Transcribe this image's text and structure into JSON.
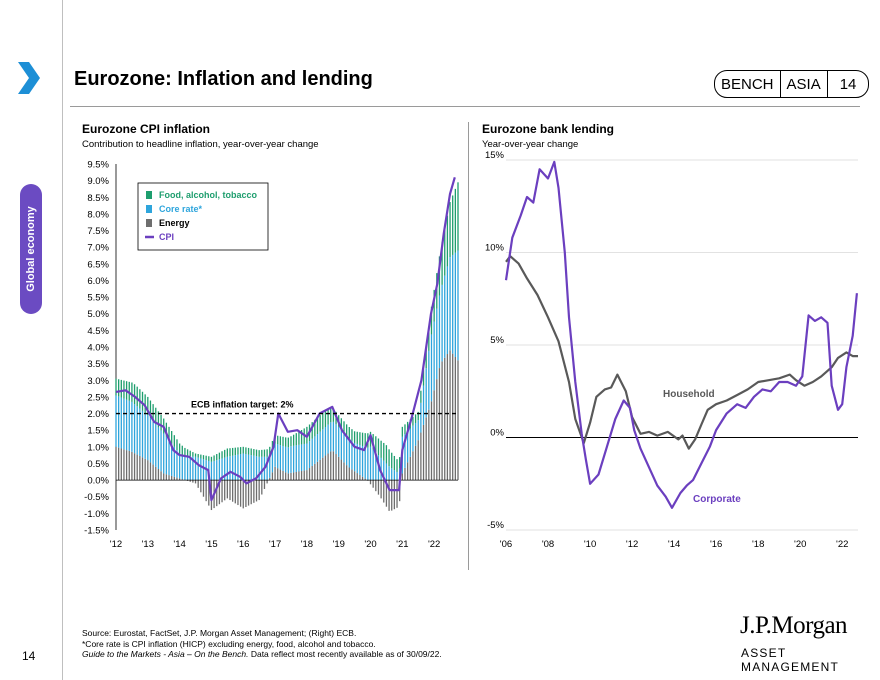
{
  "header": {
    "title": "Eurozone: Inflation and lending",
    "badge_left": "BENCH",
    "badge_mid": "ASIA",
    "badge_num": "14"
  },
  "sidebar": {
    "label": "Global economy"
  },
  "left_chart": {
    "title": "Eurozone CPI inflation",
    "subtitle": "Contribution to headline inflation, year-over-year change"
  },
  "right_chart": {
    "title": "Eurozone bank lending",
    "subtitle": "Year-over-year change"
  },
  "footer": {
    "line1": "Source: Eurostat, FactSet, J.P. Morgan Asset Management; (Right) ECB.",
    "line2": "*Core rate is CPI inflation (HICP) excluding energy, food, alcohol and tobacco.",
    "line3_italic": "Guide to the Markets - Asia – On the Bench.",
    "line3_rest": " Data reflect most recently available as of 30/09/22."
  },
  "page_number": "14",
  "logo": {
    "line1": "J.P.Morgan",
    "line2": "ASSET MANAGEMENT"
  },
  "colors": {
    "food": "#1e9e6e",
    "core": "#2ea5dc",
    "energy": "#6e6e6e",
    "cpi": "#6b3fbf",
    "household": "#595959",
    "corporate": "#6b3fbf",
    "accent": "#1d8fd6",
    "sidebar": "#6b4bc2"
  },
  "chart_data": [
    {
      "type": "bar",
      "stacked": true,
      "title": "Eurozone CPI inflation",
      "subtitle": "Contribution to headline inflation, year-over-year change",
      "x_ticks": [
        "'12",
        "'13",
        "'14",
        "'15",
        "'16",
        "'17",
        "'18",
        "'19",
        "'20",
        "'21",
        "'22"
      ],
      "x_tick_years": [
        2012,
        2013,
        2014,
        2015,
        2016,
        2017,
        2018,
        2019,
        2020,
        2021,
        2022
      ],
      "x_range": [
        2012.0,
        2022.75
      ],
      "ylim": [
        -1.5,
        9.5
      ],
      "y_ticks": [
        "-1.5%",
        "-1.0%",
        "-0.5%",
        "0.0%",
        "0.5%",
        "1.0%",
        "1.5%",
        "2.0%",
        "2.5%",
        "3.0%",
        "3.5%",
        "4.0%",
        "4.5%",
        "5.0%",
        "5.5%",
        "6.0%",
        "6.5%",
        "7.0%",
        "7.5%",
        "8.0%",
        "8.5%",
        "9.0%",
        "9.5%"
      ],
      "y_tick_values": [
        -1.5,
        -1.0,
        -0.5,
        0.0,
        0.5,
        1.0,
        1.5,
        2.0,
        2.5,
        3.0,
        3.5,
        4.0,
        4.5,
        5.0,
        5.5,
        6.0,
        6.5,
        7.0,
        7.5,
        8.0,
        8.5,
        9.0,
        9.5
      ],
      "legend": [
        "Food, alcohol, tobacco",
        "Core rate*",
        "Energy",
        "CPI"
      ],
      "legend_position": "top-left",
      "target_line": {
        "value": 2.0,
        "label": "ECB inflation target: 2%"
      },
      "energy_anchors": [
        [
          2012.0,
          1.0
        ],
        [
          2012.5,
          0.85
        ],
        [
          2013.0,
          0.6
        ],
        [
          2013.5,
          0.2
        ],
        [
          2014.0,
          0.05
        ],
        [
          2014.5,
          -0.1
        ],
        [
          2015.0,
          -0.9
        ],
        [
          2015.5,
          -0.55
        ],
        [
          2016.0,
          -0.85
        ],
        [
          2016.5,
          -0.6
        ],
        [
          2017.0,
          0.4
        ],
        [
          2017.4,
          0.2
        ],
        [
          2018.0,
          0.3
        ],
        [
          2018.8,
          0.9
        ],
        [
          2019.3,
          0.4
        ],
        [
          2019.9,
          0.0
        ],
        [
          2020.3,
          -0.5
        ],
        [
          2020.6,
          -0.95
        ],
        [
          2020.9,
          -0.8
        ],
        [
          2021.0,
          0.2
        ],
        [
          2021.5,
          1.2
        ],
        [
          2021.9,
          2.3
        ],
        [
          2022.2,
          3.5
        ],
        [
          2022.5,
          3.9
        ],
        [
          2022.75,
          3.6
        ]
      ],
      "food_anchors": [
        [
          2012.0,
          0.5
        ],
        [
          2012.6,
          0.6
        ],
        [
          2013.0,
          0.55
        ],
        [
          2013.5,
          0.45
        ],
        [
          2014.0,
          0.3
        ],
        [
          2014.5,
          0.1
        ],
        [
          2015.0,
          0.15
        ],
        [
          2015.5,
          0.25
        ],
        [
          2016.0,
          0.2
        ],
        [
          2016.5,
          0.2
        ],
        [
          2017.0,
          0.25
        ],
        [
          2017.5,
          0.3
        ],
        [
          2018.0,
          0.5
        ],
        [
          2018.5,
          0.5
        ],
        [
          2019.0,
          0.35
        ],
        [
          2019.5,
          0.35
        ],
        [
          2020.0,
          0.45
        ],
        [
          2020.5,
          0.55
        ],
        [
          2021.0,
          0.3
        ],
        [
          2021.5,
          0.25
        ],
        [
          2022.0,
          0.95
        ],
        [
          2022.4,
          1.5
        ],
        [
          2022.75,
          2.05
        ]
      ],
      "core_anchors": [
        [
          2012.0,
          1.55
        ],
        [
          2012.5,
          1.5
        ],
        [
          2013.0,
          1.35
        ],
        [
          2013.5,
          1.2
        ],
        [
          2014.0,
          0.75
        ],
        [
          2014.5,
          0.7
        ],
        [
          2015.0,
          0.55
        ],
        [
          2015.5,
          0.7
        ],
        [
          2016.0,
          0.8
        ],
        [
          2016.5,
          0.7
        ],
        [
          2017.0,
          0.7
        ],
        [
          2017.5,
          0.8
        ],
        [
          2018.0,
          0.8
        ],
        [
          2018.5,
          0.85
        ],
        [
          2019.0,
          0.9
        ],
        [
          2019.5,
          0.85
        ],
        [
          2020.0,
          1.0
        ],
        [
          2020.6,
          0.4
        ],
        [
          2020.9,
          0.2
        ],
        [
          2021.0,
          1.1
        ],
        [
          2021.5,
          0.6
        ],
        [
          2021.9,
          2.0
        ],
        [
          2022.2,
          2.2
        ],
        [
          2022.5,
          2.8
        ],
        [
          2022.75,
          3.3
        ]
      ],
      "cpi_anchors": [
        [
          2012.0,
          2.65
        ],
        [
          2012.3,
          2.7
        ],
        [
          2012.6,
          2.5
        ],
        [
          2012.9,
          2.25
        ],
        [
          2013.2,
          1.75
        ],
        [
          2013.5,
          1.6
        ],
        [
          2013.8,
          0.9
        ],
        [
          2014.0,
          0.75
        ],
        [
          2014.3,
          0.7
        ],
        [
          2014.6,
          0.45
        ],
        [
          2014.9,
          0.3
        ],
        [
          2015.0,
          -0.6
        ],
        [
          2015.3,
          0.05
        ],
        [
          2015.6,
          0.25
        ],
        [
          2015.9,
          0.1
        ],
        [
          2016.1,
          -0.1
        ],
        [
          2016.4,
          0.05
        ],
        [
          2016.7,
          0.4
        ],
        [
          2016.95,
          1.0
        ],
        [
          2017.1,
          2.0
        ],
        [
          2017.4,
          1.45
        ],
        [
          2017.7,
          1.5
        ],
        [
          2018.0,
          1.3
        ],
        [
          2018.4,
          2.0
        ],
        [
          2018.8,
          2.2
        ],
        [
          2019.1,
          1.5
        ],
        [
          2019.5,
          1.0
        ],
        [
          2019.8,
          0.9
        ],
        [
          2020.0,
          1.35
        ],
        [
          2020.3,
          0.3
        ],
        [
          2020.6,
          -0.3
        ],
        [
          2020.9,
          -0.3
        ],
        [
          2021.0,
          0.9
        ],
        [
          2021.3,
          1.9
        ],
        [
          2021.6,
          3.0
        ],
        [
          2021.9,
          5.0
        ],
        [
          2022.1,
          5.9
        ],
        [
          2022.3,
          7.4
        ],
        [
          2022.5,
          8.6
        ],
        [
          2022.65,
          9.1
        ]
      ]
    },
    {
      "type": "line",
      "title": "Eurozone bank lending",
      "subtitle": "Year-over-year change",
      "x_ticks": [
        "'06",
        "'08",
        "'10",
        "'12",
        "'14",
        "'16",
        "'18",
        "'20",
        "'22"
      ],
      "x_tick_years": [
        2006,
        2008,
        2010,
        2012,
        2014,
        2016,
        2018,
        2020,
        2022
      ],
      "x_range": [
        2006.0,
        2022.75
      ],
      "ylim": [
        -5,
        15
      ],
      "y_ticks": [
        "-5%",
        "0%",
        "5%",
        "10%",
        "15%"
      ],
      "y_tick_values": [
        -5,
        0,
        5,
        10,
        15
      ],
      "series": [
        {
          "name": "Household",
          "label": "Household",
          "points": [
            [
              2006.0,
              9.5
            ],
            [
              2006.2,
              9.8
            ],
            [
              2006.6,
              9.4
            ],
            [
              2007.0,
              8.6
            ],
            [
              2007.5,
              7.7
            ],
            [
              2008.0,
              6.5
            ],
            [
              2008.5,
              5.2
            ],
            [
              2009.0,
              3.0
            ],
            [
              2009.3,
              1.0
            ],
            [
              2009.7,
              -0.3
            ],
            [
              2010.0,
              0.8
            ],
            [
              2010.3,
              2.2
            ],
            [
              2010.7,
              2.6
            ],
            [
              2011.0,
              2.7
            ],
            [
              2011.3,
              3.4
            ],
            [
              2011.7,
              2.5
            ],
            [
              2012.0,
              1.1
            ],
            [
              2012.4,
              0.2
            ],
            [
              2012.8,
              0.3
            ],
            [
              2013.2,
              0.1
            ],
            [
              2013.7,
              0.3
            ],
            [
              2014.2,
              -0.1
            ],
            [
              2014.4,
              0.1
            ],
            [
              2014.7,
              -0.6
            ],
            [
              2015.0,
              -0.1
            ],
            [
              2015.3,
              0.7
            ],
            [
              2015.6,
              1.5
            ],
            [
              2016.0,
              1.8
            ],
            [
              2016.5,
              2.0
            ],
            [
              2017.0,
              2.3
            ],
            [
              2017.5,
              2.6
            ],
            [
              2018.0,
              3.0
            ],
            [
              2018.5,
              3.1
            ],
            [
              2019.0,
              3.2
            ],
            [
              2019.5,
              3.4
            ],
            [
              2019.8,
              3.1
            ],
            [
              2020.2,
              2.8
            ],
            [
              2020.6,
              3.0
            ],
            [
              2021.0,
              3.3
            ],
            [
              2021.5,
              3.8
            ],
            [
              2021.8,
              4.3
            ],
            [
              2022.2,
              4.6
            ],
            [
              2022.5,
              4.4
            ],
            [
              2022.75,
              4.4
            ]
          ]
        },
        {
          "name": "Corporate",
          "label": "Corporate",
          "points": [
            [
              2006.0,
              8.5
            ],
            [
              2006.3,
              10.8
            ],
            [
              2006.7,
              12.0
            ],
            [
              2007.0,
              13.0
            ],
            [
              2007.3,
              12.7
            ],
            [
              2007.6,
              14.5
            ],
            [
              2008.0,
              14.0
            ],
            [
              2008.3,
              14.9
            ],
            [
              2008.5,
              13.5
            ],
            [
              2008.8,
              10.0
            ],
            [
              2009.0,
              6.5
            ],
            [
              2009.3,
              3.0
            ],
            [
              2009.6,
              0.2
            ],
            [
              2009.8,
              -1.2
            ],
            [
              2010.0,
              -2.5
            ],
            [
              2010.4,
              -2.0
            ],
            [
              2010.8,
              -0.5
            ],
            [
              2011.2,
              1.0
            ],
            [
              2011.6,
              2.0
            ],
            [
              2011.9,
              1.6
            ],
            [
              2012.1,
              0.4
            ],
            [
              2012.4,
              -0.6
            ],
            [
              2012.8,
              -1.6
            ],
            [
              2013.2,
              -2.6
            ],
            [
              2013.6,
              -3.2
            ],
            [
              2013.9,
              -3.8
            ],
            [
              2014.3,
              -3.0
            ],
            [
              2014.6,
              -2.6
            ],
            [
              2014.9,
              -2.3
            ],
            [
              2015.3,
              -1.4
            ],
            [
              2015.7,
              -0.5
            ],
            [
              2016.0,
              0.4
            ],
            [
              2016.5,
              1.3
            ],
            [
              2017.0,
              1.8
            ],
            [
              2017.4,
              1.6
            ],
            [
              2017.8,
              2.2
            ],
            [
              2018.2,
              2.6
            ],
            [
              2018.6,
              2.5
            ],
            [
              2019.0,
              3.0
            ],
            [
              2019.4,
              3.0
            ],
            [
              2019.8,
              2.8
            ],
            [
              2020.1,
              3.3
            ],
            [
              2020.4,
              6.6
            ],
            [
              2020.7,
              6.3
            ],
            [
              2021.0,
              6.5
            ],
            [
              2021.3,
              6.2
            ],
            [
              2021.5,
              2.8
            ],
            [
              2021.8,
              1.5
            ],
            [
              2022.0,
              1.8
            ],
            [
              2022.2,
              3.8
            ],
            [
              2022.5,
              5.5
            ],
            [
              2022.7,
              7.8
            ]
          ]
        }
      ]
    }
  ]
}
